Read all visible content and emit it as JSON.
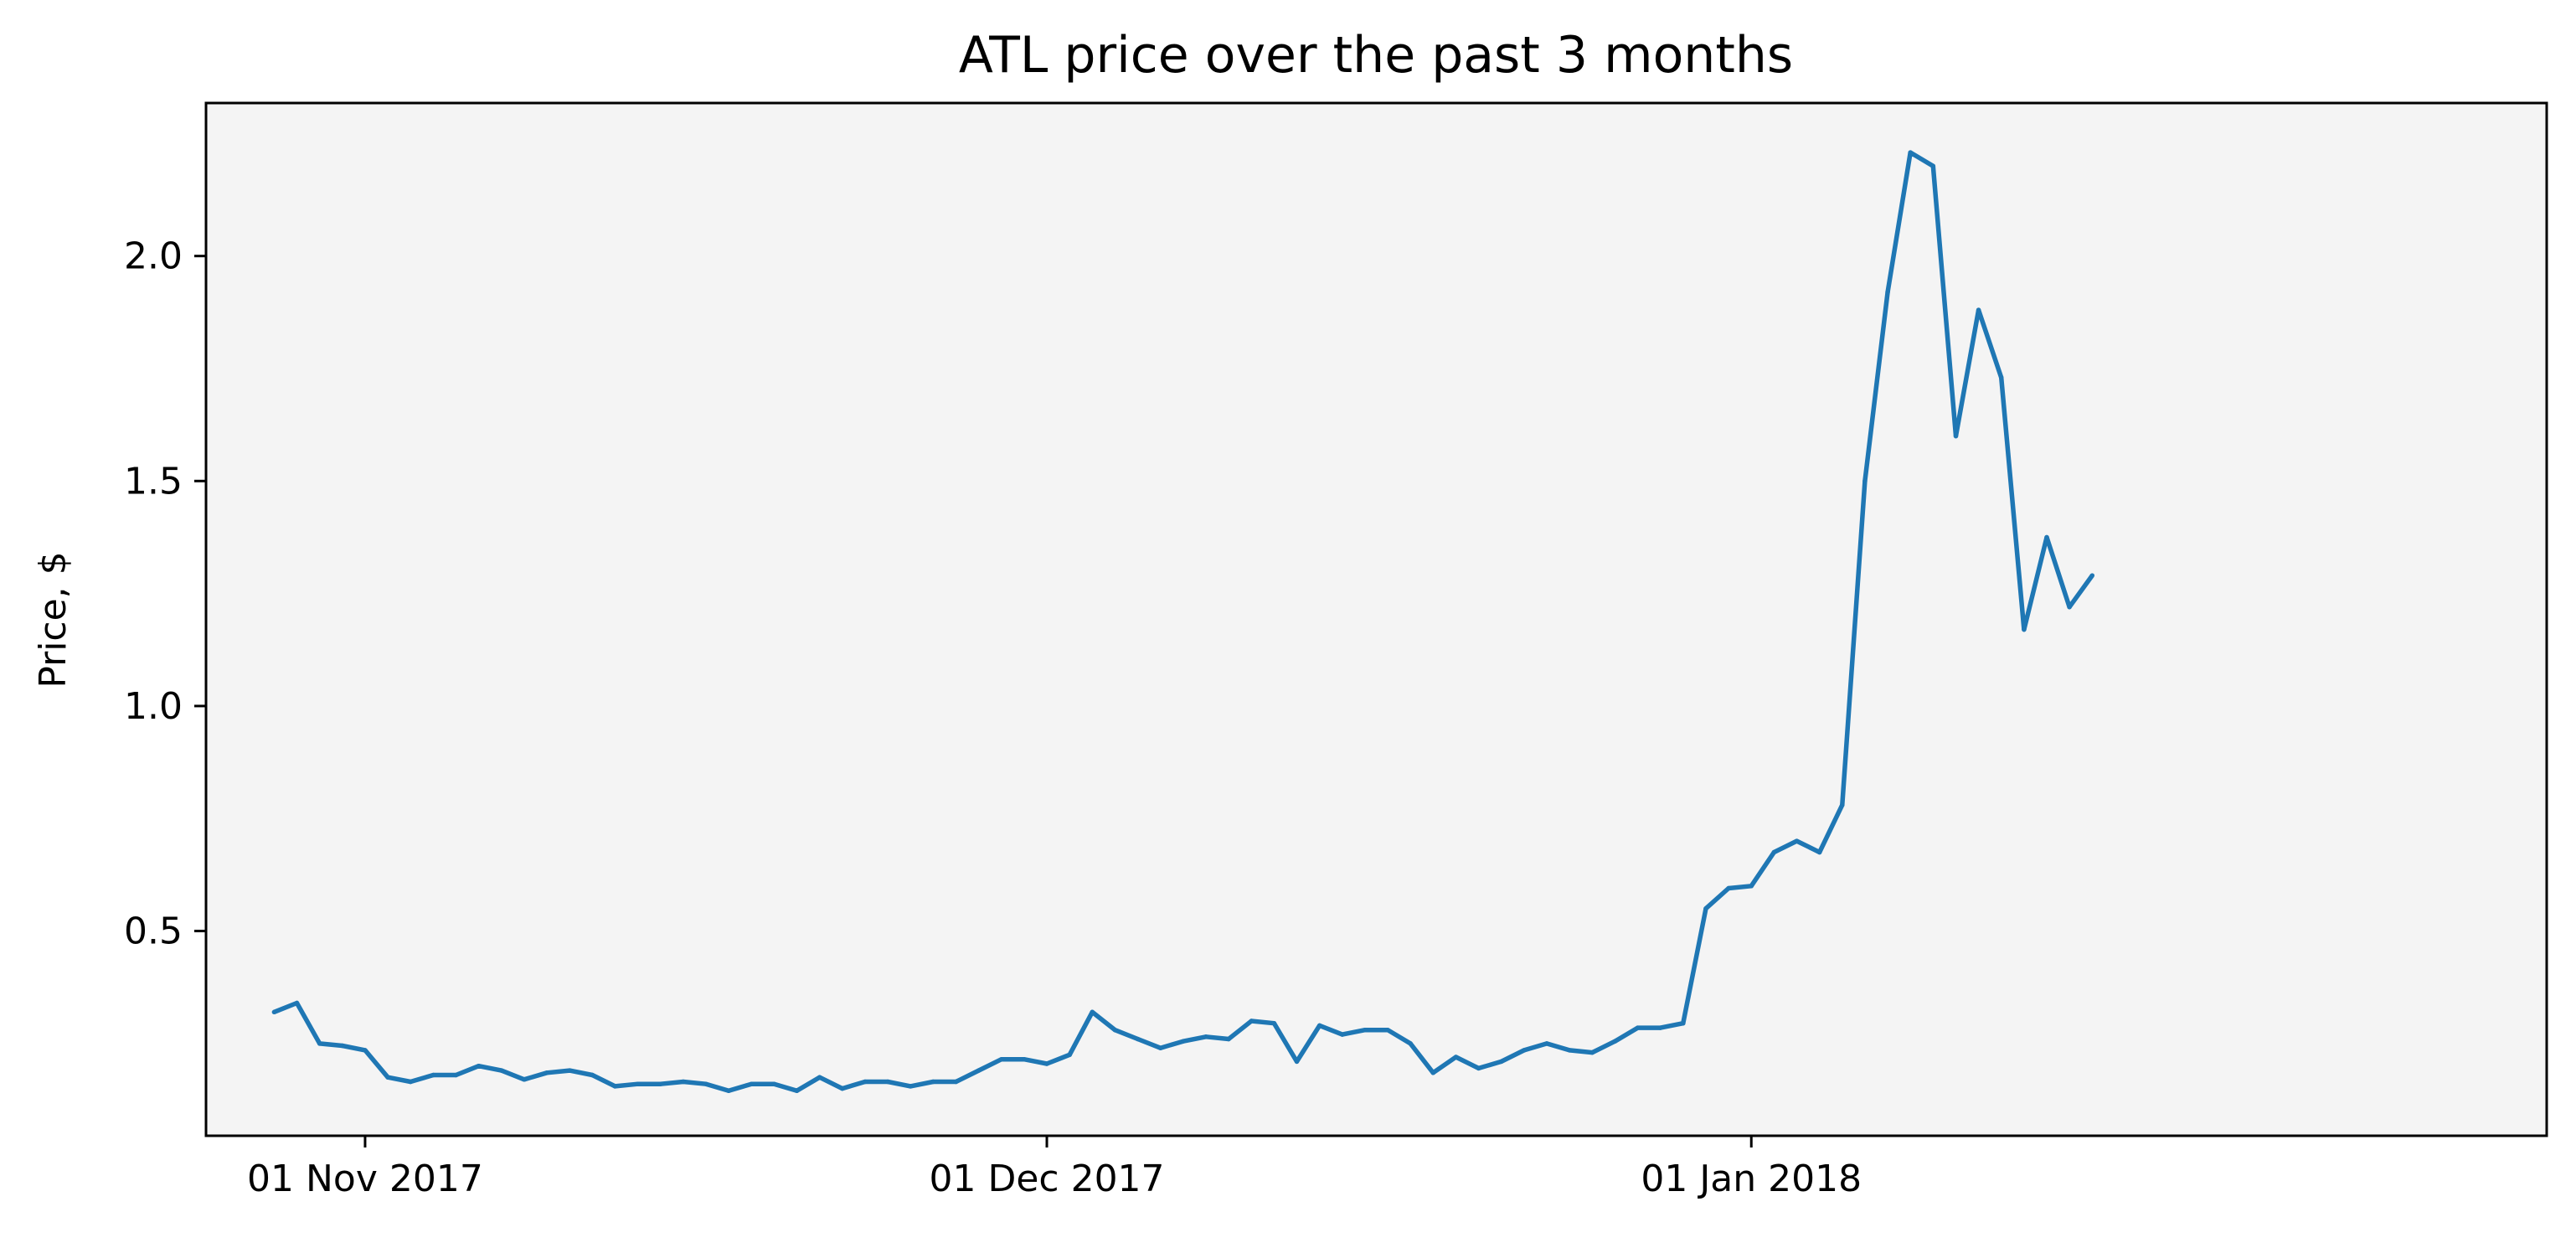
{
  "chart_data": {
    "type": "line",
    "title": "ATL price over the past 3 months",
    "xlabel": "",
    "ylabel": "Price, $",
    "x_start": "2017-10-28",
    "x_step_days": 1,
    "xlim": [
      "2017-10-25",
      "2018-02-05"
    ],
    "ylim": [
      0.045,
      2.34
    ],
    "x_ticks": [
      {
        "date": "2017-11-01",
        "label": "01 Nov 2017"
      },
      {
        "date": "2017-12-01",
        "label": "01 Dec 2017"
      },
      {
        "date": "2018-01-01",
        "label": "01 Jan 2018"
      }
    ],
    "y_ticks": [
      {
        "value": 0.5,
        "label": "0.5"
      },
      {
        "value": 1.0,
        "label": "1.0"
      },
      {
        "value": 1.5,
        "label": "1.5"
      },
      {
        "value": 2.0,
        "label": "2.0"
      }
    ],
    "grid": false,
    "legend": "none",
    "colors": {
      "line": "#1f77b4",
      "plot_background": "#f4f4f4",
      "axes": "#000000"
    },
    "series": [
      {
        "values": [
          0.32,
          0.34,
          0.25,
          0.245,
          0.235,
          0.175,
          0.165,
          0.18,
          0.18,
          0.2,
          0.19,
          0.17,
          0.185,
          0.19,
          0.18,
          0.155,
          0.16,
          0.16,
          0.165,
          0.16,
          0.145,
          0.16,
          0.16,
          0.145,
          0.175,
          0.15,
          0.165,
          0.165,
          0.155,
          0.165,
          0.165,
          0.19,
          0.215,
          0.215,
          0.205,
          0.225,
          0.32,
          0.28,
          0.26,
          0.24,
          0.255,
          0.265,
          0.26,
          0.3,
          0.295,
          0.21,
          0.29,
          0.27,
          0.28,
          0.28,
          0.25,
          0.185,
          0.22,
          0.195,
          0.21,
          0.235,
          0.25,
          0.235,
          0.23,
          0.255,
          0.285,
          0.285,
          0.295,
          0.55,
          0.595,
          0.6,
          0.675,
          0.7,
          0.675,
          0.78,
          1.5,
          1.92,
          2.23,
          2.2,
          1.6,
          1.88,
          1.73,
          1.17,
          1.375,
          1.22,
          1.29
        ]
      }
    ]
  }
}
